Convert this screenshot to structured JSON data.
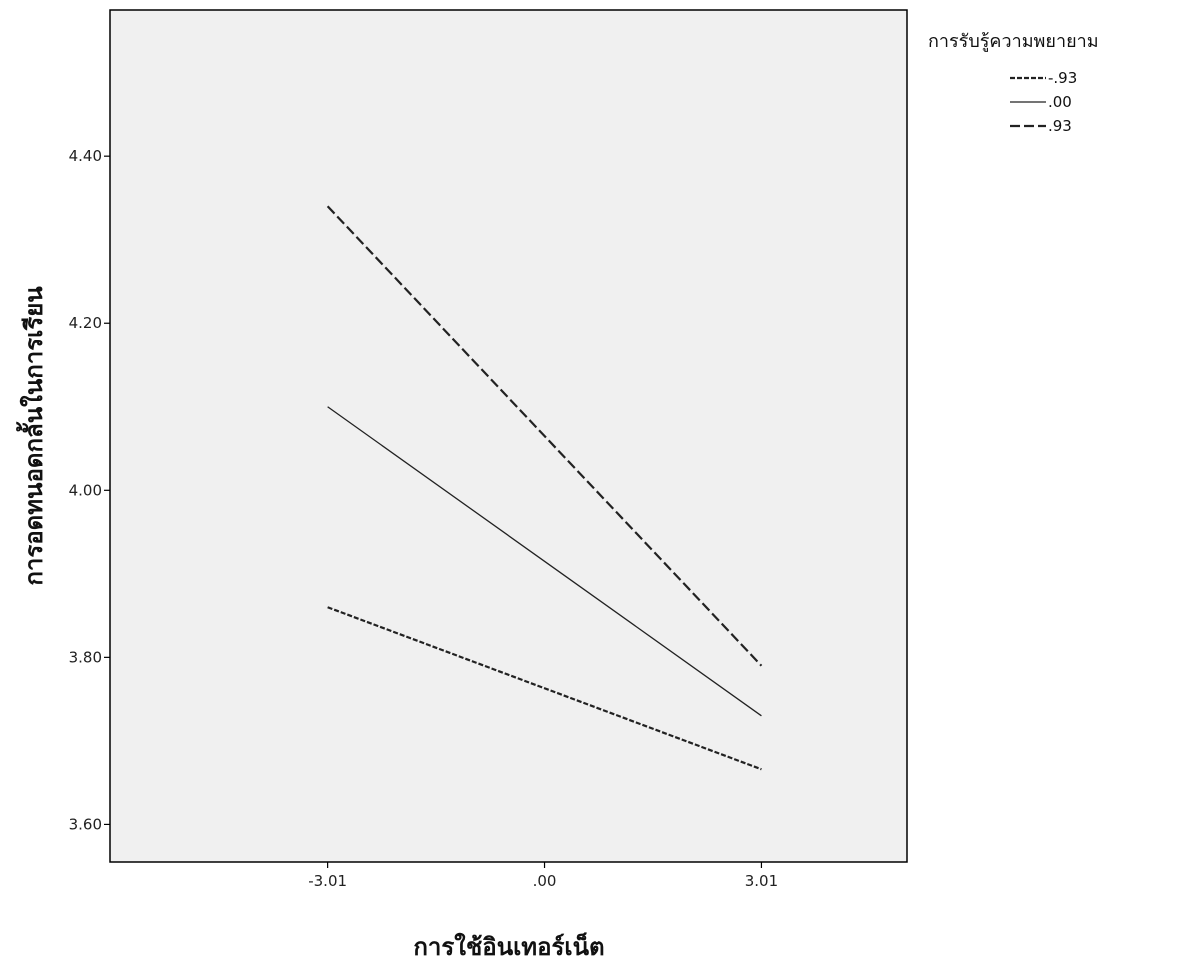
{
  "chart_data": {
    "type": "line",
    "xlabel": "การใช้อินเทอร์เน็ต",
    "ylabel": "การอดทนอดกลั้นในการเรียน",
    "x": [
      -3.01,
      0.0,
      3.01
    ],
    "x_tick_labels": [
      "-3.01",
      ".00",
      "3.01"
    ],
    "xlim": [
      -6.03,
      5.03
    ],
    "ylim": [
      3.555,
      4.575
    ],
    "y_ticks": [
      3.6,
      3.8,
      4.0,
      4.2,
      4.4
    ],
    "y_tick_labels": [
      "3.60",
      "3.80",
      "4.00",
      "4.20",
      "4.40"
    ],
    "background_color": "#f0f0f0",
    "grid": false,
    "legend": {
      "title": "การรับรู้ความพยายาม",
      "placement": "top-right outside plot"
    },
    "series": [
      {
        "name": "-.93",
        "style": "dotted",
        "values": [
          3.86,
          3.763,
          3.666
        ]
      },
      {
        "name": ".00",
        "style": "solid",
        "values": [
          4.1,
          3.915,
          3.73
        ]
      },
      {
        "name": ".93",
        "style": "dashed",
        "values": [
          4.34,
          4.065,
          3.79
        ]
      }
    ]
  }
}
